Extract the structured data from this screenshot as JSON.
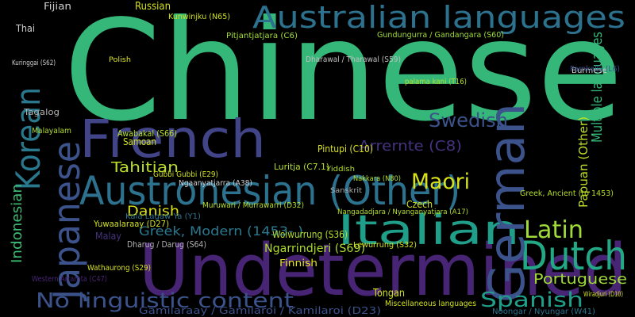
{
  "words": [
    "Chinese",
    "Undetermined",
    "French",
    "Australian languages",
    "Austronesian (Other)",
    "Italian",
    "Dutch",
    "German",
    "Japanese",
    "Korean",
    "Indonesian",
    "Multiple languages",
    "Papuan (Other)",
    "No linguistic content",
    "Spanish",
    "Portuguese",
    "Latin",
    "Maori",
    "Swedish",
    "Arrernte (C8)",
    "Tahitian",
    "Danish",
    "Greek, Modern (1453- )",
    "Tongan",
    "Finnish",
    "Ngarrindjeri (S69)",
    "Czech",
    "Russian",
    "Fijian",
    "Thai",
    "Tagalog",
    "Malayalam",
    "Malay",
    "Samoan",
    "Awabakal (S66)",
    "Pintupi (C10)",
    "Pitjantjatjara (C6)",
    "Kunwinjku (N65)",
    "Gundungurra / Gandangara (S60)",
    "Dharawal / Tharawal (S59)",
    "Gamilaraay / Gamilaroi / Kamilaroi (D23)",
    "Miscellaneous languages",
    "Noongar / Nyungar (W41)",
    "Kala Lagaw Ya (Y1)",
    "Yuwaalaraay (D27)",
    "Dharug / Darug (S64)",
    "Wathaurong (S29)",
    "Luritja (C7.1)",
    "Gubbi Gubbi (E29)",
    "Muruwari / Murrawarri (D32)",
    "Woiwurrung (S36)",
    "Lewurrung (S32)",
    "Burmese",
    "Polish",
    "Yiddish",
    "Sanskrit",
    "Greek, Ancient (to 1453)",
    "palama kani (T16)",
    "Nakkara (N80)",
    "Nangadadjara / Nyanganyatjara (A17)",
    "Ngaanyatjarra (A38)",
    "Wiradjuri (D10)",
    "Parnkalla (L6)",
    "Western Arrarnta (C47)",
    "Kuringgai (S62)"
  ]
}
